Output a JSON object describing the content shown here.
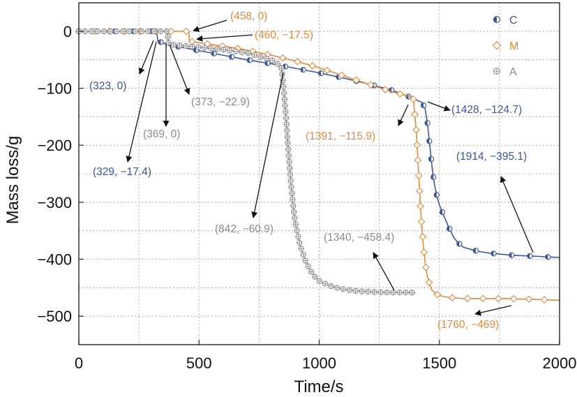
{
  "chart_data": {
    "type": "line",
    "title": "",
    "xlabel": "Time/s",
    "ylabel": "Mass loss/g",
    "xlim": [
      0,
      2000
    ],
    "ylim": [
      -550,
      50
    ],
    "xticks": [
      0,
      500,
      1000,
      1500,
      2000
    ],
    "yticks": [
      0,
      -100,
      -200,
      -300,
      -400,
      -500
    ],
    "xtick_labels": [
      "0",
      "500",
      "1000",
      "1500",
      "2000"
    ],
    "ytick_labels": [
      "0",
      "−100",
      "−200",
      "−300",
      "−400",
      "−500"
    ],
    "grid": true,
    "legend_position": "top-right",
    "series": [
      {
        "name": "C",
        "color": "#3d5896",
        "marker": "half-filled-circle",
        "x": [
          0,
          300,
          323,
          329,
          360,
          400,
          500,
          600,
          700,
          800,
          900,
          1000,
          1100,
          1200,
          1300,
          1380,
          1428,
          1440,
          1450,
          1460,
          1470,
          1480,
          1490,
          1500,
          1520,
          1540,
          1560,
          1580,
          1600,
          1650,
          1700,
          1750,
          1800,
          1850,
          1914,
          1950,
          2000
        ],
        "y": [
          0,
          0,
          0,
          -17.4,
          -22,
          -26,
          -34,
          -42,
          -50,
          -57,
          -65,
          -73,
          -82,
          -92,
          -103,
          -116,
          -124.7,
          -135,
          -160,
          -200,
          -240,
          -270,
          -290,
          -305,
          -325,
          -345,
          -362,
          -372,
          -379,
          -385,
          -389,
          -391,
          -393,
          -394,
          -395.1,
          -396,
          -397
        ]
      },
      {
        "name": "M",
        "color": "#e08a3c",
        "marker": "open-diamond",
        "x": [
          0,
          300,
          400,
          458,
          460,
          500,
          600,
          700,
          800,
          900,
          1000,
          1100,
          1200,
          1300,
          1391,
          1405,
          1420,
          1430,
          1440,
          1450,
          1460,
          1470,
          1490,
          1520,
          1560,
          1600,
          1650,
          1700,
          1760,
          1850,
          2000
        ],
        "y": [
          0,
          0,
          0,
          0,
          -17.5,
          -20,
          -26,
          -33,
          -42,
          -52,
          -64,
          -78,
          -92,
          -106,
          -115.9,
          -180,
          -300,
          -360,
          -405,
          -430,
          -445,
          -455,
          -462,
          -466,
          -468,
          -469,
          -469,
          -469,
          -469,
          -470,
          -472
        ]
      },
      {
        "name": "A",
        "color": "#8c8c8c",
        "marker": "crossed-circle",
        "x": [
          0,
          300,
          369,
          373,
          400,
          500,
          600,
          700,
          800,
          842,
          850,
          860,
          870,
          880,
          890,
          900,
          920,
          940,
          960,
          980,
          1000,
          1040,
          1080,
          1120,
          1160,
          1200,
          1250,
          1300,
          1340,
          1400
        ],
        "y": [
          0,
          0,
          0,
          -22.9,
          -24,
          -28,
          -32,
          -38,
          -50,
          -60.9,
          -90,
          -140,
          -200,
          -255,
          -300,
          -335,
          -375,
          -400,
          -418,
          -430,
          -438,
          -446,
          -451,
          -454,
          -456,
          -457,
          -458,
          -458.3,
          -458.4,
          -458.5
        ]
      }
    ],
    "annotations": [
      {
        "text": "(458, 0)",
        "series": "M"
      },
      {
        "text": "(460, −17.5)",
        "series": "M"
      },
      {
        "text": "(323, 0)",
        "series": "C"
      },
      {
        "text": "(373, −22.9)",
        "series": "A"
      },
      {
        "text": "(369, 0)",
        "series": "A"
      },
      {
        "text": "(329, −17.4)",
        "series": "C"
      },
      {
        "text": "(1428, −124.7)",
        "series": "C"
      },
      {
        "text": "(1391, −115.9)",
        "series": "M"
      },
      {
        "text": "(1914, −395.1)",
        "series": "C"
      },
      {
        "text": "(842, −60.9)",
        "series": "A"
      },
      {
        "text": "(1340, −458.4)",
        "series": "A"
      },
      {
        "text": "(1760, −469)",
        "series": "M"
      }
    ]
  }
}
